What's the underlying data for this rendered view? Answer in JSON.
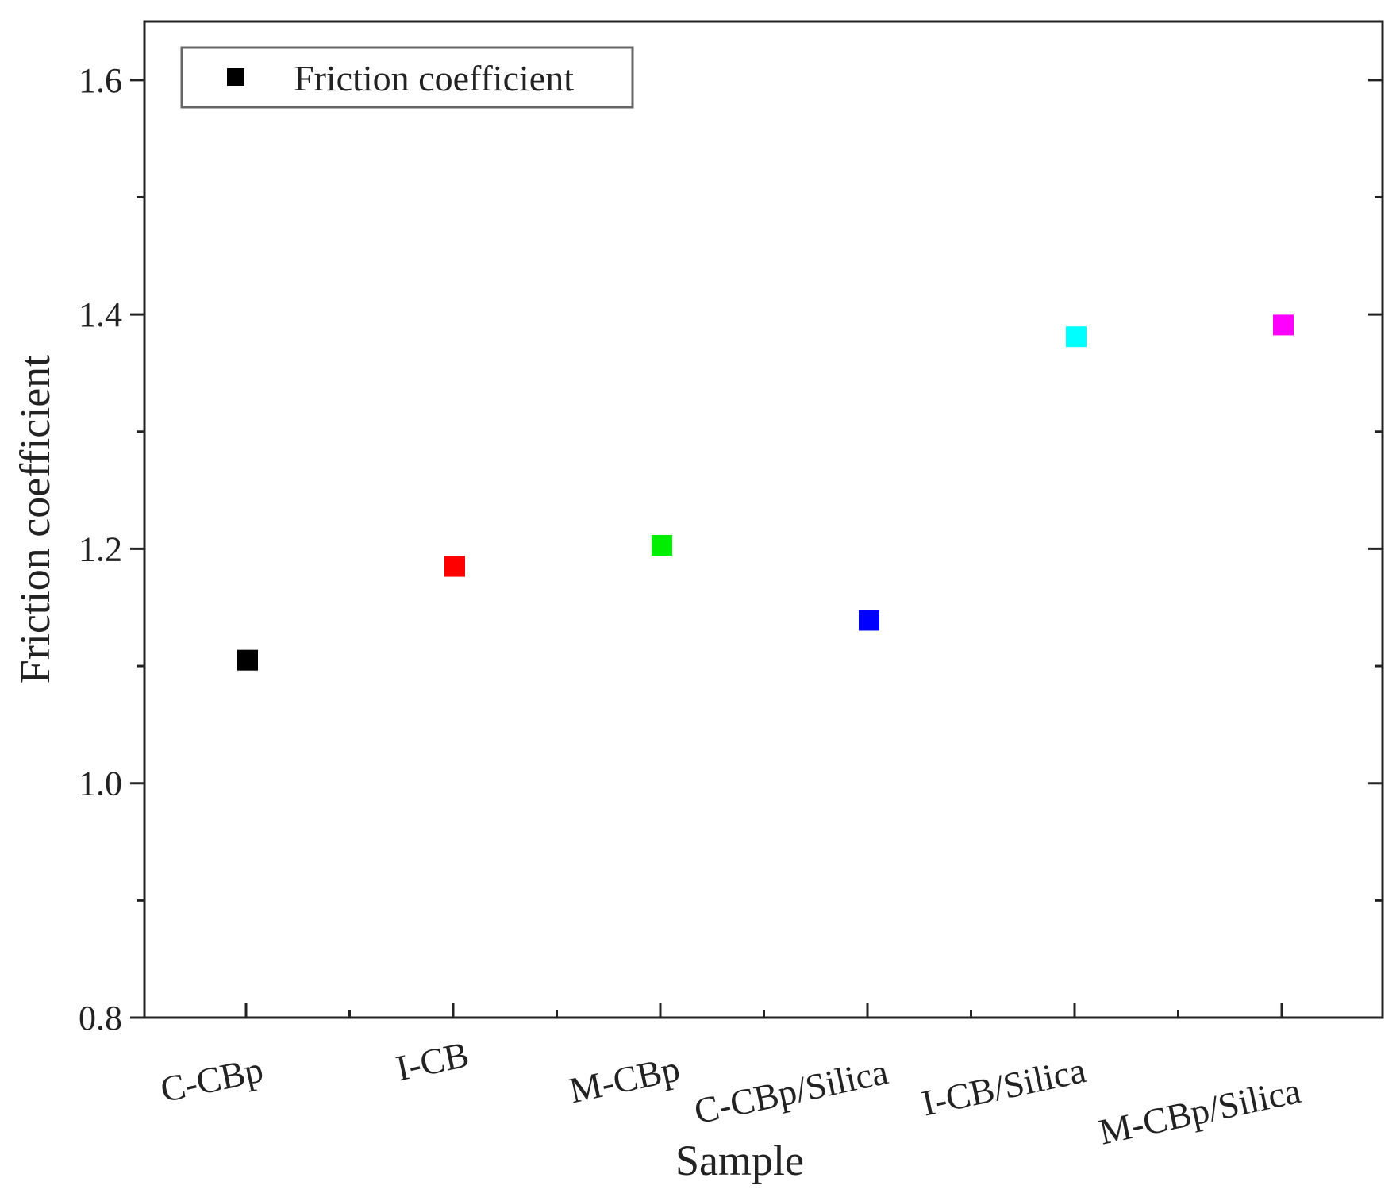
{
  "chart_data": {
    "type": "scatter",
    "xlabel": "Sample",
    "ylabel": "Friction coefficient",
    "ylim": [
      0.8,
      1.65
    ],
    "yticks": [
      "0.8",
      "1.0",
      "1.2",
      "1.4",
      "1.6"
    ],
    "categories": [
      "C-CBp",
      "I-CB",
      "M-CBp",
      "C-CBp/Silica",
      "I-CB/Silica",
      "M-CBp/Silica"
    ],
    "series": [
      {
        "name": "Friction coefficient",
        "values": [
          1.105,
          1.185,
          1.203,
          1.139,
          1.381,
          1.391
        ],
        "colors": [
          "#000000",
          "#ff0000",
          "#00ee00",
          "#0000ff",
          "#00ffff",
          "#ff00ff"
        ]
      }
    ],
    "legend": {
      "position": "top-left",
      "marker_color": "#000000",
      "label": "Friction coefficient"
    },
    "grid": false
  }
}
